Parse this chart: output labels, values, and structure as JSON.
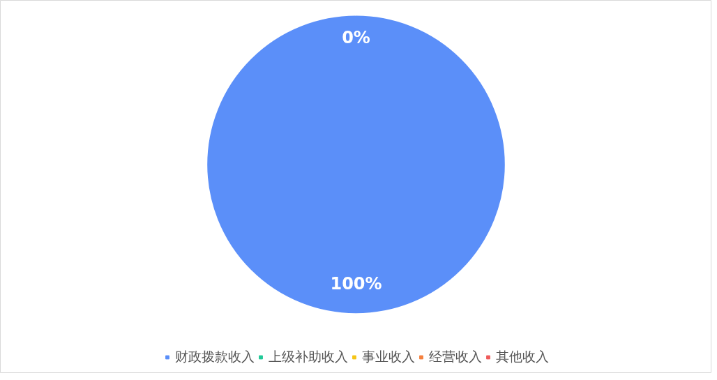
{
  "chart_data": {
    "type": "pie",
    "categories": [
      "财政拨款收入",
      "上级补助收入",
      "事业收入",
      "经营收入",
      "其他收入"
    ],
    "values": [
      100,
      0,
      0,
      0,
      0
    ],
    "colors": [
      "#5b8ff9",
      "#20c997",
      "#f5c518",
      "#f5803e",
      "#ef5b5b"
    ],
    "value_labels": [
      "100%",
      "0%",
      null,
      null,
      null
    ],
    "legend": "bottom"
  }
}
